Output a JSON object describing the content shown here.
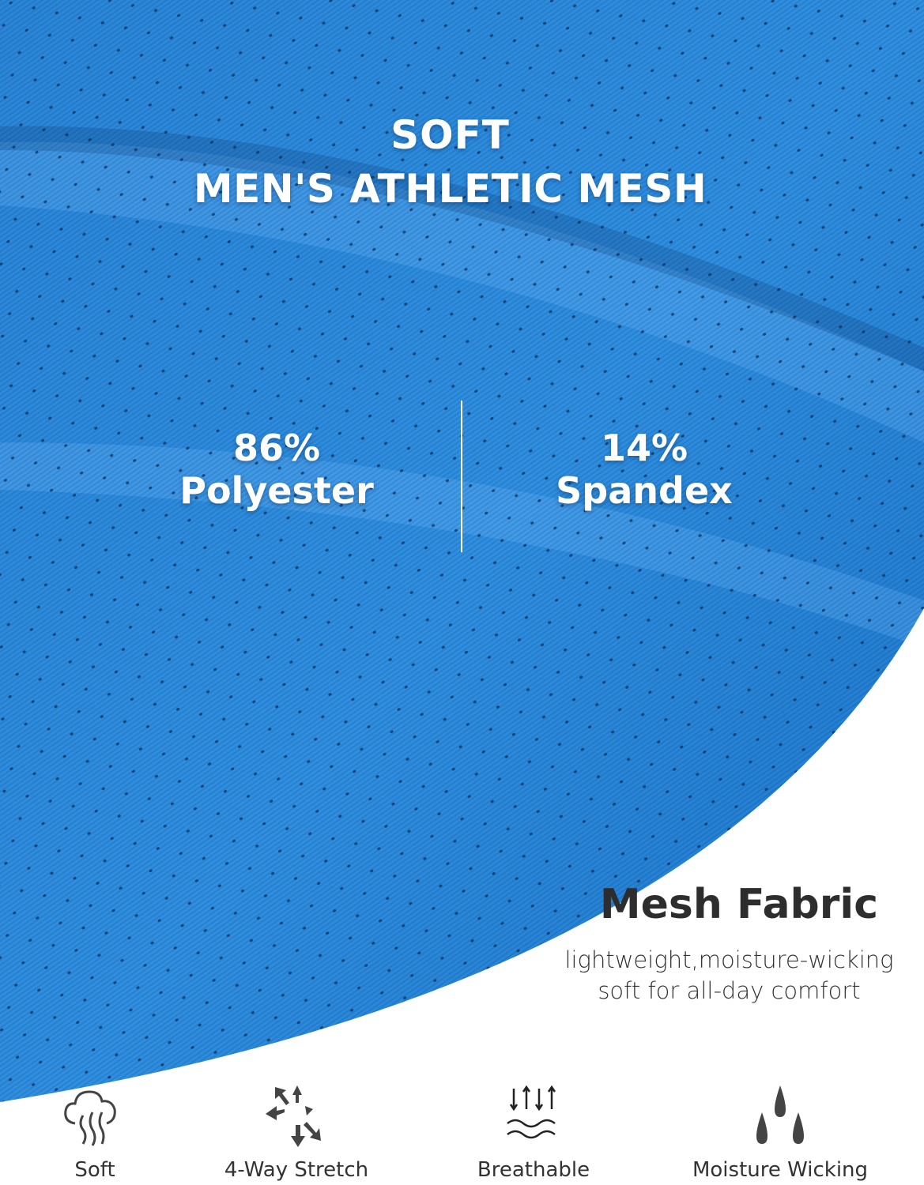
{
  "headline": {
    "line1": "SOFT",
    "line2": "MEN'S ATHLETIC MESH"
  },
  "composition": [
    {
      "percent": "86%",
      "material": "Polyester"
    },
    {
      "percent": "14%",
      "material": "Spandex"
    }
  ],
  "fabric": {
    "title": "Mesh Fabric",
    "description_line1": "lightweight,moisture-wicking",
    "description_line2": "soft for all-day comfort"
  },
  "features": [
    {
      "icon": "cloud-steam-icon",
      "label": "Soft"
    },
    {
      "icon": "stretch-arrows-icon",
      "label": "4-Way Stretch"
    },
    {
      "icon": "airflow-waves-icon",
      "label": "Breathable"
    },
    {
      "icon": "water-drops-icon",
      "label": "Moisture Wicking"
    }
  ],
  "colors": {
    "fabric_blue": "#1f7fd6",
    "text_dark": "#2d2d2d",
    "icon_gray": "#444444"
  }
}
